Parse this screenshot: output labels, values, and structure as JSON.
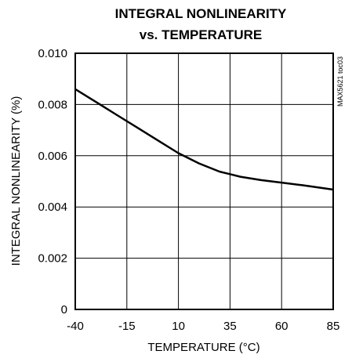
{
  "chart_data": {
    "type": "line",
    "title_line1": "INTEGRAL NONLINEARITY",
    "title_line2": "vs. TEMPERATURE",
    "xlabel": "TEMPERATURE (°C)",
    "ylabel": "INTEGRAL NONLINEARITY (%)",
    "figure_id": "MAX5621 toc03",
    "xlim": [
      -40,
      85
    ],
    "ylim": [
      0,
      0.01
    ],
    "xticks": [
      "-40",
      "-15",
      "10",
      "35",
      "60",
      "85"
    ],
    "yticks": [
      "0",
      "0.002",
      "0.004",
      "0.006",
      "0.008",
      "0.010"
    ],
    "grid": true,
    "series": [
      {
        "x": [
          -40,
          -30,
          -20,
          -10,
          0,
          10,
          20,
          30,
          35,
          40,
          50,
          60,
          70,
          85
        ],
        "y": [
          0.0086,
          0.0081,
          0.0076,
          0.0071,
          0.0066,
          0.0061,
          0.0057,
          0.00538,
          0.00528,
          0.00518,
          0.00505,
          0.00495,
          0.00485,
          0.00468
        ]
      }
    ]
  }
}
